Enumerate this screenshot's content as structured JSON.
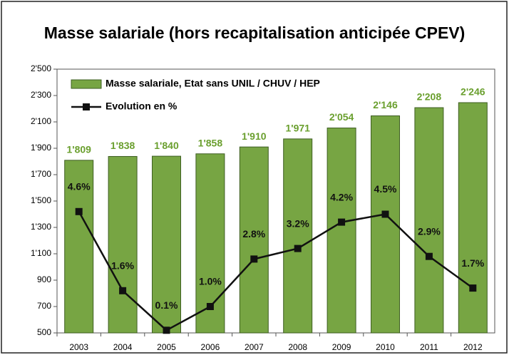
{
  "chart_data": {
    "type": "bar",
    "title": "Masse salariale (hors recapitalisation anticipée CPEV)",
    "categories": [
      "2003",
      "2004",
      "2005",
      "2006",
      "2007",
      "2008",
      "2009",
      "2010",
      "2011",
      "2012"
    ],
    "series": [
      {
        "name": "Masse salariale, Etat sans UNIL / CHUV / HEP",
        "type": "bar",
        "color": "#77a543",
        "values": [
          1809,
          1838,
          1840,
          1858,
          1910,
          1971,
          2054,
          2146,
          2208,
          2246
        ],
        "value_labels": [
          "1'809",
          "1'838",
          "1'840",
          "1'858",
          "1'910",
          "1'971",
          "2'054",
          "2'146",
          "2'208",
          "2'246"
        ]
      },
      {
        "name": "Evolution en %",
        "type": "line",
        "axis": "y2",
        "color": "#111111",
        "values": [
          4.6,
          1.6,
          0.1,
          1.0,
          2.8,
          3.2,
          4.2,
          4.5,
          2.9,
          1.7
        ],
        "value_labels": [
          "4.6%",
          "1.6%",
          "0.1%",
          "1.0%",
          "2.8%",
          "3.2%",
          "4.2%",
          "4.5%",
          "2.9%",
          "1.7%"
        ]
      }
    ],
    "ylim": [
      500,
      2500
    ],
    "yticks": [
      {
        "value": 500,
        "label": "500"
      },
      {
        "value": 700,
        "label": "700"
      },
      {
        "value": 900,
        "label": "900"
      },
      {
        "value": 1100,
        "label": "1'100"
      },
      {
        "value": 1300,
        "label": "1'300"
      },
      {
        "value": 1500,
        "label": "1'500"
      },
      {
        "value": 1700,
        "label": "1'700"
      },
      {
        "value": 1900,
        "label": "1'900"
      },
      {
        "value": 2100,
        "label": "2'100"
      },
      {
        "value": 2300,
        "label": "2'300"
      },
      {
        "value": 2500,
        "label": "2'500"
      }
    ],
    "y2lim": [
      0,
      10
    ],
    "grid": false,
    "legend": "top-left"
  }
}
